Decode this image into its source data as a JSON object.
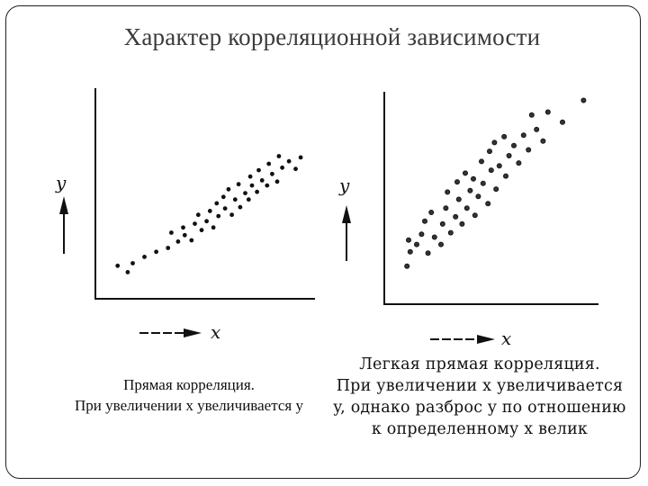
{
  "title": "Характер корреляционной зависимости",
  "left_panel": {
    "ylabel": "y",
    "xlabel": "x",
    "caption": [
      "Прямая корреляция.",
      "При увеличении x увеличивается y"
    ]
  },
  "right_panel": {
    "ylabel": "y",
    "xlabel": "x",
    "caption": [
      "Легкая прямая корреляция.",
      "При увеличении x увеличивается",
      "y, однако разброс y по отношению",
      "к определенному x велик"
    ]
  },
  "chart_data": [
    {
      "type": "scatter",
      "title": "",
      "xlabel": "x",
      "ylabel": "y",
      "grid": false,
      "points": [
        [
          1.0,
          1.6
        ],
        [
          1.6,
          1.1
        ],
        [
          1.9,
          1.8
        ],
        [
          2.6,
          2.3
        ],
        [
          3.3,
          2.7
        ],
        [
          4.0,
          3.0
        ],
        [
          4.6,
          3.5
        ],
        [
          4.2,
          4.2
        ],
        [
          5.0,
          4.0
        ],
        [
          5.4,
          3.6
        ],
        [
          4.9,
          4.6
        ],
        [
          5.6,
          4.9
        ],
        [
          6.0,
          4.4
        ],
        [
          5.8,
          5.6
        ],
        [
          6.3,
          5.1
        ],
        [
          6.7,
          4.6
        ],
        [
          6.5,
          5.9
        ],
        [
          7.0,
          5.5
        ],
        [
          6.9,
          6.5
        ],
        [
          7.4,
          6.1
        ],
        [
          7.8,
          5.6
        ],
        [
          7.3,
          7.0
        ],
        [
          8.0,
          6.8
        ],
        [
          8.3,
          6.2
        ],
        [
          7.6,
          7.6
        ],
        [
          8.6,
          7.3
        ],
        [
          8.8,
          6.8
        ],
        [
          8.2,
          8.0
        ],
        [
          9.0,
          7.9
        ],
        [
          9.3,
          7.4
        ],
        [
          8.9,
          8.6
        ],
        [
          9.6,
          8.3
        ],
        [
          9.9,
          7.9
        ],
        [
          9.4,
          9.1
        ],
        [
          10.2,
          8.8
        ],
        [
          10.5,
          8.2
        ],
        [
          10.0,
          9.6
        ],
        [
          10.8,
          9.3
        ],
        [
          11.2,
          9.8
        ],
        [
          11.6,
          9.2
        ],
        [
          10.6,
          10.2
        ],
        [
          11.9,
          10.1
        ]
      ]
    },
    {
      "type": "scatter",
      "title": "",
      "xlabel": "x",
      "ylabel": "y",
      "grid": false,
      "points": [
        [
          0.9,
          1.0
        ],
        [
          1.1,
          2.0
        ],
        [
          1.0,
          2.8
        ],
        [
          1.5,
          2.5
        ],
        [
          1.8,
          3.2
        ],
        [
          2.2,
          1.9
        ],
        [
          2.0,
          4.1
        ],
        [
          2.6,
          3.0
        ],
        [
          2.4,
          4.7
        ],
        [
          3.0,
          2.5
        ],
        [
          3.1,
          3.9
        ],
        [
          3.3,
          5.0
        ],
        [
          3.6,
          3.3
        ],
        [
          3.4,
          6.1
        ],
        [
          3.9,
          4.4
        ],
        [
          4.1,
          5.6
        ],
        [
          4.3,
          3.9
        ],
        [
          4.0,
          6.8
        ],
        [
          4.6,
          5.0
        ],
        [
          4.8,
          6.2
        ],
        [
          4.5,
          7.4
        ],
        [
          5.1,
          4.5
        ],
        [
          5.3,
          5.8
        ],
        [
          5.0,
          7.0
        ],
        [
          5.6,
          6.7
        ],
        [
          5.5,
          8.2
        ],
        [
          5.9,
          5.3
        ],
        [
          6.1,
          7.6
        ],
        [
          6.0,
          8.9
        ],
        [
          6.4,
          6.3
        ],
        [
          6.6,
          7.9
        ],
        [
          6.3,
          9.5
        ],
        [
          7.0,
          7.2
        ],
        [
          7.2,
          8.6
        ],
        [
          6.9,
          9.9
        ],
        [
          7.5,
          9.3
        ],
        [
          7.8,
          8.1
        ],
        [
          8.1,
          10.0
        ],
        [
          8.4,
          9.0
        ],
        [
          8.9,
          10.4
        ],
        [
          9.3,
          9.6
        ],
        [
          10.5,
          10.9
        ],
        [
          8.6,
          11.4
        ],
        [
          9.6,
          11.6
        ],
        [
          11.8,
          12.4
        ]
      ]
    }
  ]
}
